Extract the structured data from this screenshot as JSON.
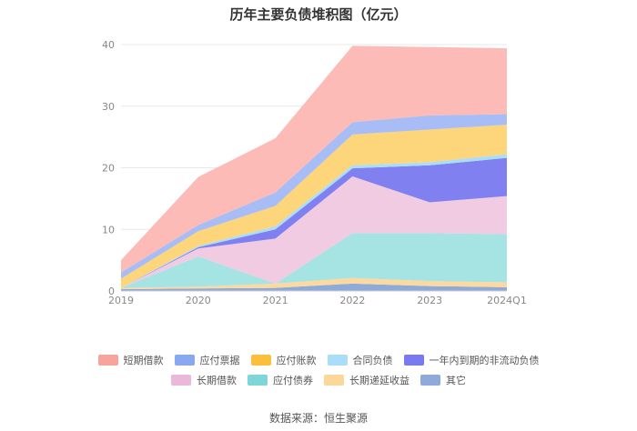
{
  "chart_data": {
    "type": "area",
    "title": "历年主要负债堆积图（亿元）",
    "xlabel": "",
    "ylabel": "",
    "categories": [
      "2019",
      "2020",
      "2021",
      "2022",
      "2023",
      "2024Q1"
    ],
    "ylim": [
      0,
      40
    ],
    "yticks": [
      0,
      10,
      20,
      30,
      40
    ],
    "grid": true,
    "legend_position": "bottom",
    "series": [
      {
        "name": "其它",
        "color": "#8eaad8",
        "values": [
          0.3,
          0.4,
          0.5,
          1.2,
          0.8,
          0.6
        ]
      },
      {
        "name": "长期递延收益",
        "color": "#fdd9a0",
        "values": [
          0.2,
          0.3,
          0.7,
          0.9,
          0.8,
          0.8
        ]
      },
      {
        "name": "应付债券",
        "color": "#a6e3e3",
        "values": [
          0.0,
          4.9,
          0.0,
          7.3,
          7.8,
          7.8
        ]
      },
      {
        "name": "长期借款",
        "color": "#f0cbe2",
        "values": [
          0.0,
          1.3,
          7.3,
          9.2,
          5.0,
          6.2
        ]
      },
      {
        "name": "一年内到期的非流动负债",
        "color": "#8080f0",
        "values": [
          0.0,
          0.2,
          1.5,
          1.3,
          6.0,
          6.2
        ]
      },
      {
        "name": "合同负债",
        "color": "#aadef8",
        "values": [
          0.0,
          0.2,
          0.5,
          0.5,
          0.5,
          0.6
        ]
      },
      {
        "name": "应付账款",
        "color": "#fdd57a",
        "values": [
          1.5,
          2.4,
          3.3,
          5.0,
          5.3,
          4.8
        ]
      },
      {
        "name": "应付票据",
        "color": "#a8bdf5",
        "values": [
          1.0,
          1.0,
          2.2,
          2.0,
          2.3,
          1.7
        ]
      },
      {
        "name": "短期借款",
        "color": "#fcbbb6",
        "values": [
          2.0,
          7.8,
          8.8,
          12.4,
          11.1,
          10.7
        ]
      }
    ]
  },
  "legend": {
    "row1": [
      {
        "name": "短期借款",
        "color": "#f7a59c"
      },
      {
        "name": "应付票据",
        "color": "#8aa8f2"
      },
      {
        "name": "应付账款",
        "color": "#fbbf3c"
      },
      {
        "name": "合同负债",
        "color": "#aadef8"
      },
      {
        "name": "一年内到期的非流动负债",
        "color": "#7a7af0"
      }
    ],
    "row2": [
      {
        "name": "长期借款",
        "color": "#ebb8d9"
      },
      {
        "name": "应付债券",
        "color": "#7fd6d6"
      },
      {
        "name": "长期递延收益",
        "color": "#fcd79b"
      },
      {
        "name": "其它",
        "color": "#8eaad8"
      }
    ]
  },
  "source": "数据来源：恒生聚源"
}
